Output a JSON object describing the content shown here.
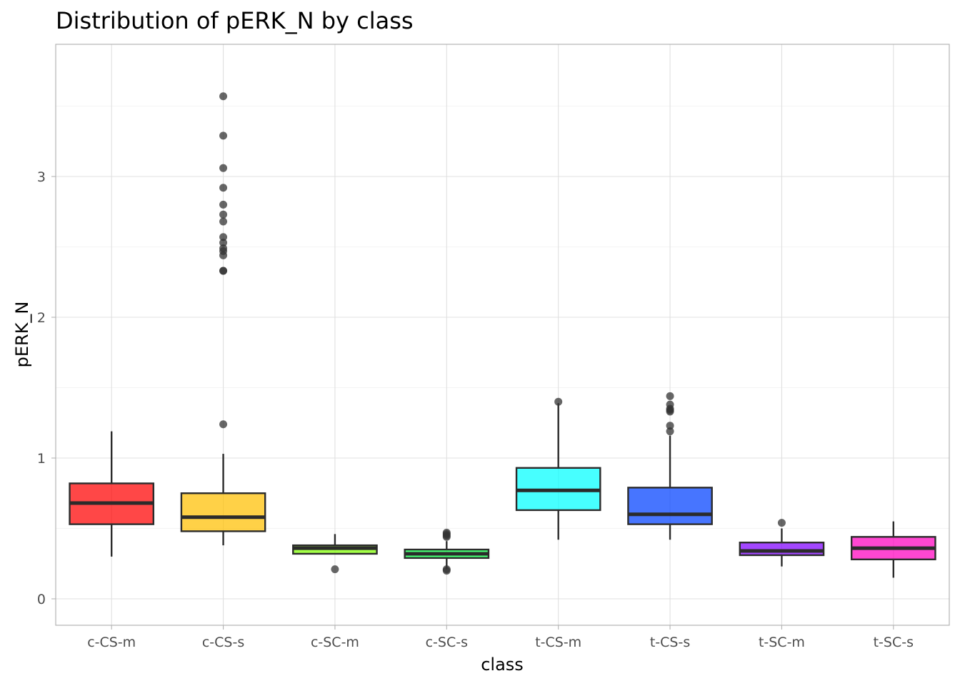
{
  "chart_data": {
    "type": "boxplot",
    "title": "Distribution of pERK_N by class",
    "xlabel": "class",
    "ylabel": "pERK_N",
    "ylim": [
      -0.18,
      3.9
    ],
    "yticks": [
      0,
      1,
      2,
      3
    ],
    "grid": true,
    "categories": [
      "c-CS-m",
      "c-CS-s",
      "c-SC-m",
      "c-SC-s",
      "t-CS-m",
      "t-CS-s",
      "t-SC-m",
      "t-SC-s"
    ],
    "boxes": [
      {
        "category": "c-CS-m",
        "color": "#ff0000",
        "whisker_low": 0.3,
        "q1": 0.53,
        "median": 0.68,
        "q3": 0.82,
        "whisker_high": 1.19,
        "outliers": []
      },
      {
        "category": "c-CS-s",
        "color": "#ffbf00",
        "whisker_low": 0.38,
        "q1": 0.48,
        "median": 0.58,
        "q3": 0.75,
        "whisker_high": 1.03,
        "outliers": [
          1.24,
          2.33,
          2.33,
          2.44,
          2.47,
          2.49,
          2.53,
          2.57,
          2.68,
          2.73,
          2.8,
          2.92,
          3.06,
          3.29,
          3.57
        ]
      },
      {
        "category": "c-SC-m",
        "color": "#80ff00",
        "whisker_low": 0.32,
        "q1": 0.32,
        "median": 0.36,
        "q3": 0.38,
        "whisker_high": 0.46,
        "outliers": [
          0.21
        ]
      },
      {
        "category": "c-SC-s",
        "color": "#00ff40",
        "whisker_low": 0.21,
        "q1": 0.29,
        "median": 0.32,
        "q3": 0.35,
        "whisker_high": 0.41,
        "outliers": [
          0.2,
          0.21,
          0.44,
          0.45,
          0.46,
          0.47
        ]
      },
      {
        "category": "t-CS-m",
        "color": "#00ffff",
        "whisker_low": 0.42,
        "q1": 0.63,
        "median": 0.77,
        "q3": 0.93,
        "whisker_high": 1.39,
        "outliers": [
          1.4
        ]
      },
      {
        "category": "t-CS-s",
        "color": "#0040ff",
        "whisker_low": 0.42,
        "q1": 0.53,
        "median": 0.6,
        "q3": 0.79,
        "whisker_high": 1.16,
        "outliers": [
          1.19,
          1.23,
          1.33,
          1.34,
          1.35,
          1.38,
          1.44
        ]
      },
      {
        "category": "t-SC-m",
        "color": "#8000ff",
        "whisker_low": 0.23,
        "q1": 0.31,
        "median": 0.34,
        "q3": 0.4,
        "whisker_high": 0.5,
        "outliers": [
          0.54
        ]
      },
      {
        "category": "t-SC-s",
        "color": "#ff00bf",
        "whisker_low": 0.15,
        "q1": 0.28,
        "median": 0.36,
        "q3": 0.44,
        "whisker_high": 0.55,
        "outliers": []
      }
    ]
  }
}
